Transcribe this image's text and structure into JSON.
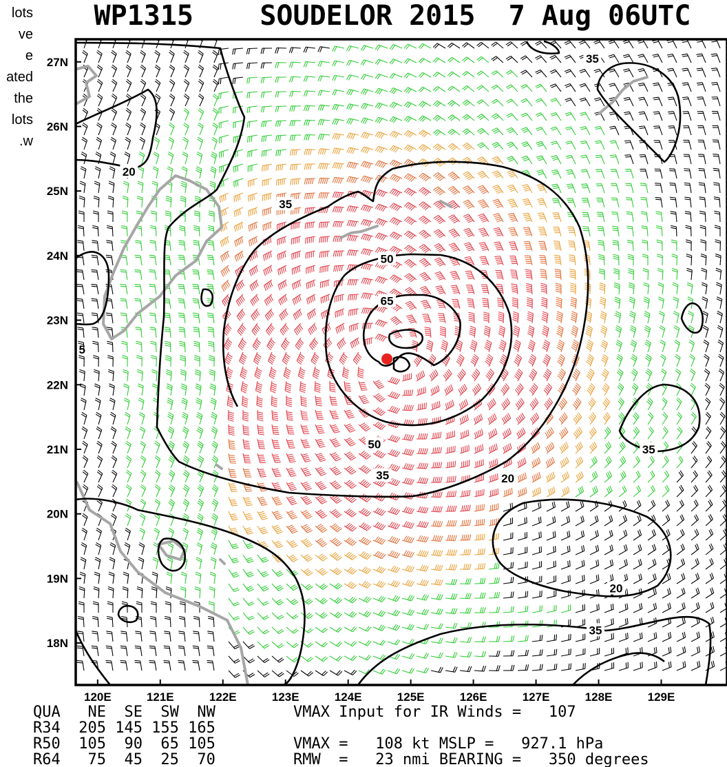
{
  "side_note": [
    "lots",
    "ve",
    "e",
    "ated",
    "the",
    "lots",
    "w."
  ],
  "title": "WP1315    SOUDELOR 2015  7 Aug 06UTC",
  "colors": {
    "frame": "#000000",
    "coast": "#a6a6a6",
    "contour": "#000000",
    "center": "#e8231f",
    "barb_lt20": "#000000",
    "barb_20_35": "#2ecc33",
    "barb_35_50": "#e8a23a",
    "barb_50_65": "#e0703a",
    "barb_gt65": "#e0404a"
  },
  "chart_data": {
    "type": "map",
    "title": "WP1315    SOUDELOR 2015  7 Aug 06UTC",
    "lon_range": [
      119.65,
      130.05
    ],
    "lat_range": [
      17.35,
      27.35
    ],
    "lon_ticks": [
      "120E",
      "121E",
      "122E",
      "123E",
      "124E",
      "125E",
      "126E",
      "127E",
      "128E",
      "129E"
    ],
    "lat_ticks": [
      "18N",
      "19N",
      "20N",
      "21N",
      "22N",
      "23N",
      "24N",
      "25N",
      "26N",
      "27N"
    ],
    "storm_center": {
      "lon": 124.62,
      "lat": 22.4
    },
    "wind_contours_kt": [
      20,
      35,
      50,
      65
    ],
    "contour_labels": [
      {
        "text": "35",
        "lon": 127.9,
        "lat": 27.05
      },
      {
        "text": "20",
        "lon": 120.5,
        "lat": 25.3
      },
      {
        "text": "35",
        "lon": 123.0,
        "lat": 24.8
      },
      {
        "text": "50",
        "lon": 124.62,
        "lat": 23.95
      },
      {
        "text": "65",
        "lon": 124.62,
        "lat": 23.3
      },
      {
        "text": "50",
        "lon": 124.42,
        "lat": 21.08
      },
      {
        "text": "35",
        "lon": 128.8,
        "lat": 21.0
      },
      {
        "text": "35",
        "lon": 124.55,
        "lat": 20.6
      },
      {
        "text": "20",
        "lon": 126.55,
        "lat": 20.55
      },
      {
        "text": "20",
        "lon": 128.28,
        "lat": 18.85
      },
      {
        "text": "35",
        "lon": 127.95,
        "lat": 18.2
      }
    ],
    "edge_fragment": {
      "text": "5",
      "lon": 119.7,
      "lat": 22.55
    }
  },
  "stats": {
    "rows": [
      "QUA   NE  SE  SW  NW",
      "R34  205 145 155 165",
      "R50  105  90  65 105",
      "R64   75  45  25  70"
    ],
    "lines": [
      "VMAX Input for IR Winds =   107",
      "VMAX =   108 kt MSLP =   927.1 hPa",
      "RMW  =   23 nmi BEARING =   350 degrees"
    ]
  }
}
